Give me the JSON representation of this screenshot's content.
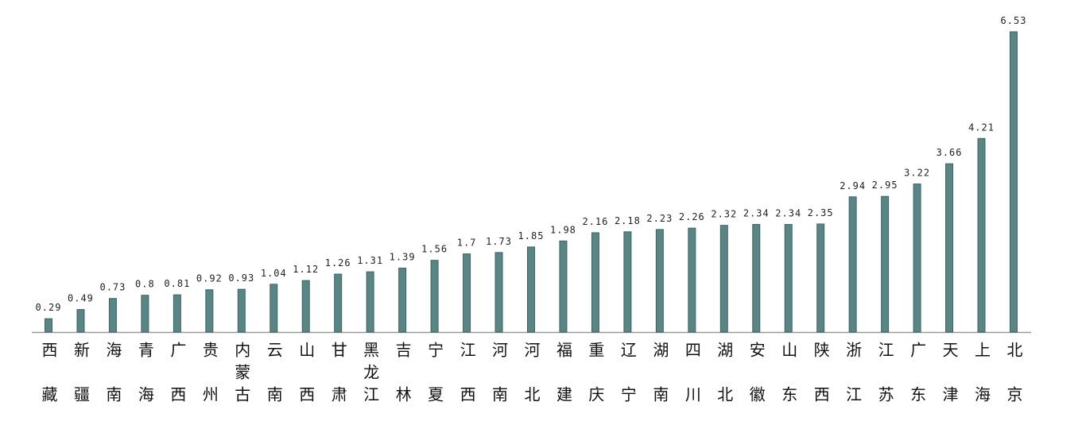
{
  "chart_data": {
    "type": "bar",
    "categories": [
      "西藏",
      "新疆",
      "海南",
      "青海",
      "广西",
      "贵州",
      "内蒙古",
      "云南",
      "山西",
      "甘肃",
      "黑龙江",
      "吉林",
      "宁夏",
      "江西",
      "河南",
      "河北",
      "福建",
      "重庆",
      "辽宁",
      "湖南",
      "四川",
      "湖北",
      "安徽",
      "山东",
      "陕西",
      "浙江",
      "江苏",
      "广东",
      "天津",
      "上海",
      "北京"
    ],
    "values": [
      0.29,
      0.49,
      0.73,
      0.8,
      0.81,
      0.92,
      0.93,
      1.04,
      1.12,
      1.26,
      1.31,
      1.39,
      1.56,
      1.7,
      1.73,
      1.85,
      1.98,
      2.16,
      2.18,
      2.23,
      2.26,
      2.32,
      2.34,
      2.34,
      2.35,
      2.94,
      2.95,
      3.22,
      3.66,
      4.21,
      6.53
    ],
    "color": "#5a8585"
  }
}
